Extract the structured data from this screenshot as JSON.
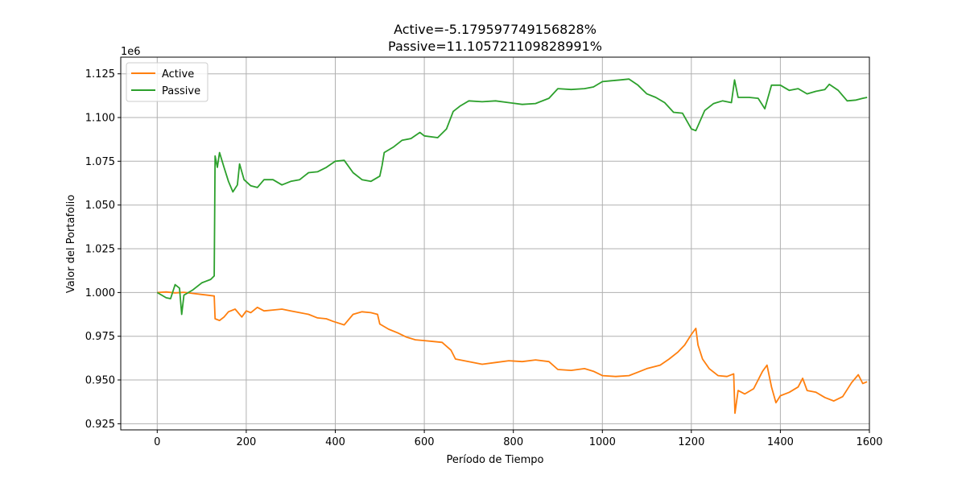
{
  "chart_data": {
    "type": "line",
    "title": [
      "Active=-5.179597749156828%",
      "Passive=11.105721109828991%"
    ],
    "xlabel": "Período de Tiempo",
    "ylabel": "Valor del Portafolio",
    "y_offset_label": "1e6",
    "xlim": [
      -82,
      1600
    ],
    "ylim": [
      921500,
      1134500
    ],
    "x_ticks": [
      0,
      200,
      400,
      600,
      800,
      1000,
      1200,
      1400,
      1600
    ],
    "x_tick_labels": [
      "0",
      "200",
      "400",
      "600",
      "800",
      "1000",
      "1200",
      "1400",
      "1600"
    ],
    "y_ticks": [
      925000,
      950000,
      975000,
      1000000,
      1025000,
      1050000,
      1075000,
      1100000,
      1125000
    ],
    "y_tick_labels": [
      "0.925",
      "0.950",
      "0.975",
      "1.000",
      "1.025",
      "1.050",
      "1.075",
      "1.100",
      "1.125"
    ],
    "grid": true,
    "legend_position": "top-left",
    "series": [
      {
        "name": "Active",
        "color": "#ff7f0e",
        "points": [
          [
            0,
            1000000
          ],
          [
            20,
            1000300
          ],
          [
            40,
            999800
          ],
          [
            60,
            1000100
          ],
          [
            80,
            999500
          ],
          [
            100,
            998900
          ],
          [
            128,
            998000
          ],
          [
            130,
            985000
          ],
          [
            140,
            984000
          ],
          [
            150,
            986000
          ],
          [
            160,
            989000
          ],
          [
            175,
            990500
          ],
          [
            190,
            986000
          ],
          [
            200,
            989500
          ],
          [
            210,
            988500
          ],
          [
            225,
            991500
          ],
          [
            240,
            989500
          ],
          [
            260,
            990000
          ],
          [
            280,
            990500
          ],
          [
            300,
            989500
          ],
          [
            320,
            988500
          ],
          [
            340,
            987500
          ],
          [
            360,
            985500
          ],
          [
            380,
            985000
          ],
          [
            395,
            983500
          ],
          [
            420,
            981500
          ],
          [
            440,
            987500
          ],
          [
            460,
            989000
          ],
          [
            480,
            988500
          ],
          [
            495,
            987500
          ],
          [
            500,
            982000
          ],
          [
            520,
            979000
          ],
          [
            540,
            977000
          ],
          [
            560,
            974500
          ],
          [
            580,
            973000
          ],
          [
            600,
            972500
          ],
          [
            620,
            972000
          ],
          [
            640,
            971500
          ],
          [
            660,
            967000
          ],
          [
            670,
            962000
          ],
          [
            700,
            960500
          ],
          [
            730,
            959000
          ],
          [
            760,
            960000
          ],
          [
            790,
            961000
          ],
          [
            820,
            960500
          ],
          [
            850,
            961500
          ],
          [
            880,
            960500
          ],
          [
            900,
            956000
          ],
          [
            930,
            955500
          ],
          [
            960,
            956500
          ],
          [
            980,
            955000
          ],
          [
            1000,
            952500
          ],
          [
            1030,
            952000
          ],
          [
            1060,
            952500
          ],
          [
            1080,
            954500
          ],
          [
            1100,
            956500
          ],
          [
            1130,
            958500
          ],
          [
            1150,
            962000
          ],
          [
            1170,
            966000
          ],
          [
            1185,
            970000
          ],
          [
            1200,
            976000
          ],
          [
            1210,
            979500
          ],
          [
            1215,
            970000
          ],
          [
            1225,
            962000
          ],
          [
            1240,
            956500
          ],
          [
            1260,
            952500
          ],
          [
            1280,
            952000
          ],
          [
            1295,
            953500
          ],
          [
            1298,
            931000
          ],
          [
            1305,
            944000
          ],
          [
            1320,
            942000
          ],
          [
            1340,
            945000
          ],
          [
            1360,
            955000
          ],
          [
            1370,
            958500
          ],
          [
            1380,
            946000
          ],
          [
            1390,
            937000
          ],
          [
            1400,
            941000
          ],
          [
            1420,
            943000
          ],
          [
            1440,
            946000
          ],
          [
            1450,
            951000
          ],
          [
            1460,
            944000
          ],
          [
            1480,
            943000
          ],
          [
            1500,
            940000
          ],
          [
            1520,
            938000
          ],
          [
            1540,
            940500
          ],
          [
            1560,
            948500
          ],
          [
            1575,
            953000
          ],
          [
            1585,
            948000
          ],
          [
            1595,
            949000
          ]
        ]
      },
      {
        "name": "Passive",
        "color": "#2ca02c",
        "points": [
          [
            0,
            1000000
          ],
          [
            10,
            998500
          ],
          [
            20,
            997000
          ],
          [
            30,
            996500
          ],
          [
            40,
            1004500
          ],
          [
            50,
            1002500
          ],
          [
            55,
            987500
          ],
          [
            60,
            998500
          ],
          [
            80,
            1001500
          ],
          [
            100,
            1005500
          ],
          [
            120,
            1007500
          ],
          [
            128,
            1009500
          ],
          [
            130,
            1078000
          ],
          [
            135,
            1071500
          ],
          [
            140,
            1080000
          ],
          [
            150,
            1071500
          ],
          [
            160,
            1063500
          ],
          [
            170,
            1057500
          ],
          [
            180,
            1061500
          ],
          [
            185,
            1073500
          ],
          [
            195,
            1064500
          ],
          [
            210,
            1061000
          ],
          [
            225,
            1060000
          ],
          [
            240,
            1064500
          ],
          [
            260,
            1064500
          ],
          [
            280,
            1061500
          ],
          [
            300,
            1063500
          ],
          [
            320,
            1064500
          ],
          [
            340,
            1068500
          ],
          [
            360,
            1069000
          ],
          [
            380,
            1071500
          ],
          [
            400,
            1075000
          ],
          [
            420,
            1075500
          ],
          [
            440,
            1068500
          ],
          [
            460,
            1064500
          ],
          [
            480,
            1063500
          ],
          [
            500,
            1066500
          ],
          [
            505,
            1072500
          ],
          [
            510,
            1080000
          ],
          [
            530,
            1083000
          ],
          [
            550,
            1087000
          ],
          [
            570,
            1088000
          ],
          [
            590,
            1091500
          ],
          [
            600,
            1089500
          ],
          [
            630,
            1088500
          ],
          [
            650,
            1093500
          ],
          [
            665,
            1103500
          ],
          [
            680,
            1106500
          ],
          [
            700,
            1109500
          ],
          [
            730,
            1109000
          ],
          [
            760,
            1109500
          ],
          [
            790,
            1108500
          ],
          [
            820,
            1107500
          ],
          [
            850,
            1108000
          ],
          [
            880,
            1111000
          ],
          [
            900,
            1116500
          ],
          [
            930,
            1116000
          ],
          [
            960,
            1116500
          ],
          [
            980,
            1117500
          ],
          [
            1000,
            1120500
          ],
          [
            1020,
            1121000
          ],
          [
            1040,
            1121500
          ],
          [
            1060,
            1122000
          ],
          [
            1080,
            1118500
          ],
          [
            1100,
            1113500
          ],
          [
            1120,
            1111500
          ],
          [
            1140,
            1108500
          ],
          [
            1160,
            1103000
          ],
          [
            1180,
            1102500
          ],
          [
            1200,
            1093500
          ],
          [
            1210,
            1092500
          ],
          [
            1230,
            1104000
          ],
          [
            1250,
            1108000
          ],
          [
            1270,
            1109500
          ],
          [
            1290,
            1108500
          ],
          [
            1297,
            1121500
          ],
          [
            1305,
            1111500
          ],
          [
            1330,
            1111500
          ],
          [
            1350,
            1111000
          ],
          [
            1365,
            1105000
          ],
          [
            1380,
            1118500
          ],
          [
            1400,
            1118500
          ],
          [
            1420,
            1115500
          ],
          [
            1440,
            1116500
          ],
          [
            1460,
            1113500
          ],
          [
            1480,
            1115000
          ],
          [
            1500,
            1116000
          ],
          [
            1510,
            1119000
          ],
          [
            1530,
            1115500
          ],
          [
            1550,
            1109500
          ],
          [
            1570,
            1110000
          ],
          [
            1585,
            1111000
          ],
          [
            1595,
            1111500
          ]
        ]
      }
    ]
  }
}
